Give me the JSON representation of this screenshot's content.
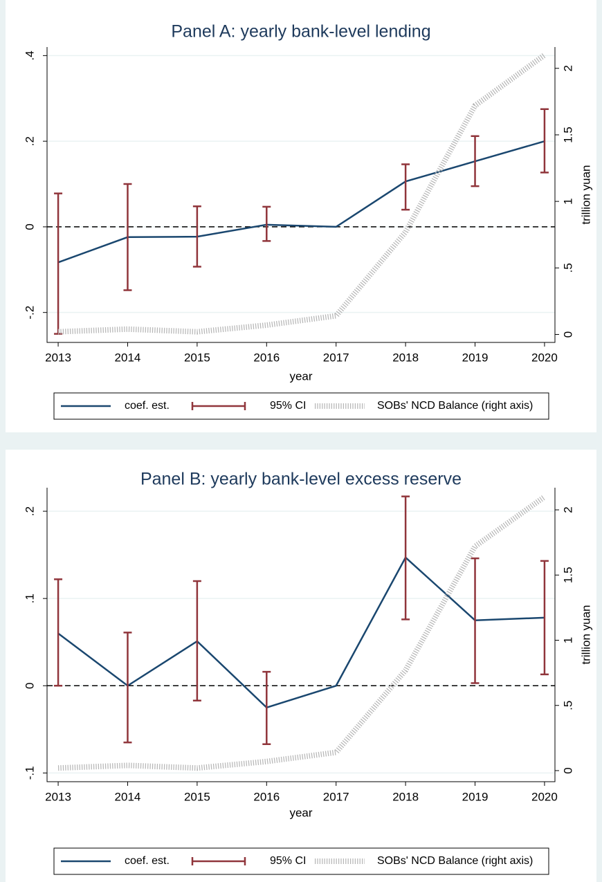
{
  "chart_data": [
    {
      "type": "line",
      "title": "Panel A: yearly bank-level lending",
      "x_label": "year",
      "y2_label": "trillion yuan",
      "x": [
        2013,
        2014,
        2015,
        2016,
        2017,
        2018,
        2019,
        2020
      ],
      "xlim": [
        2012.84,
        2020.15
      ],
      "xticks": [
        2013,
        2014,
        2015,
        2016,
        2017,
        2018,
        2019,
        2020
      ],
      "ylim": [
        -0.27,
        0.42
      ],
      "yticks": [
        {
          "value": -0.2,
          "label": "-.2"
        },
        0,
        {
          "value": 0.2,
          "label": ".2"
        },
        {
          "value": 0.4,
          "label": ".4"
        }
      ],
      "y2lim": [
        -0.06,
        2.16
      ],
      "y2ticks": [
        0,
        {
          "value": 0.5,
          "label": ".5"
        },
        1,
        1.5,
        2
      ],
      "grid": true,
      "refline": 0,
      "series": [
        {
          "name": "coef. est.",
          "color": "#1a476f",
          "values": [
            -0.083,
            -0.024,
            -0.023,
            0.005,
            0,
            0.106,
            0.153,
            0.2
          ]
        },
        {
          "name": "95% CI",
          "color": "#90353b",
          "lower": [
            -0.25,
            -0.148,
            -0.093,
            -0.033,
            null,
            0.04,
            0.095,
            0.127
          ],
          "upper": [
            0.078,
            0.1,
            0.048,
            0.047,
            null,
            0.146,
            0.212,
            0.275
          ]
        },
        {
          "name": "SOBs' NCD Balance (right axis)",
          "color": "#b4b4b4",
          "axis": "y2",
          "values": [
            0.02,
            0.04,
            0.02,
            0.07,
            0.14,
            0.77,
            1.72,
            2.1
          ]
        }
      ]
    },
    {
      "type": "line",
      "title": "Panel B: yearly bank-level excess reserve",
      "x_label": "year",
      "y2_label": "trillion yuan",
      "x": [
        2013,
        2014,
        2015,
        2016,
        2017,
        2018,
        2019,
        2020
      ],
      "xlim": [
        2012.84,
        2020.15
      ],
      "xticks": [
        2013,
        2014,
        2015,
        2016,
        2017,
        2018,
        2019,
        2020
      ],
      "ylim": [
        -0.11,
        0.227
      ],
      "yticks": [
        {
          "value": -0.1,
          "label": "-.1"
        },
        0,
        {
          "value": 0.1,
          "label": ".1"
        },
        {
          "value": 0.2,
          "label": ".2"
        }
      ],
      "y2lim": [
        -0.085,
        2.17
      ],
      "y2ticks": [
        0,
        {
          "value": 0.5,
          "label": ".5"
        },
        1,
        1.5,
        2
      ],
      "grid": true,
      "refline": 0,
      "series": [
        {
          "name": "coef. est.",
          "color": "#1a476f",
          "values": [
            0.06,
            0,
            0.051,
            -0.025,
            0,
            0.147,
            0.075,
            0.078
          ]
        },
        {
          "name": "95% CI",
          "color": "#90353b",
          "lower": [
            0,
            -0.065,
            -0.017,
            -0.067,
            null,
            0.076,
            0.003,
            0.013
          ],
          "upper": [
            0.122,
            0.061,
            0.12,
            0.016,
            null,
            0.217,
            0.146,
            0.143
          ]
        },
        {
          "name": "SOBs' NCD Balance (right axis)",
          "color": "#b4b4b4",
          "axis": "y2",
          "values": [
            0.02,
            0.04,
            0.02,
            0.07,
            0.14,
            0.77,
            1.72,
            2.1
          ]
        }
      ]
    }
  ]
}
